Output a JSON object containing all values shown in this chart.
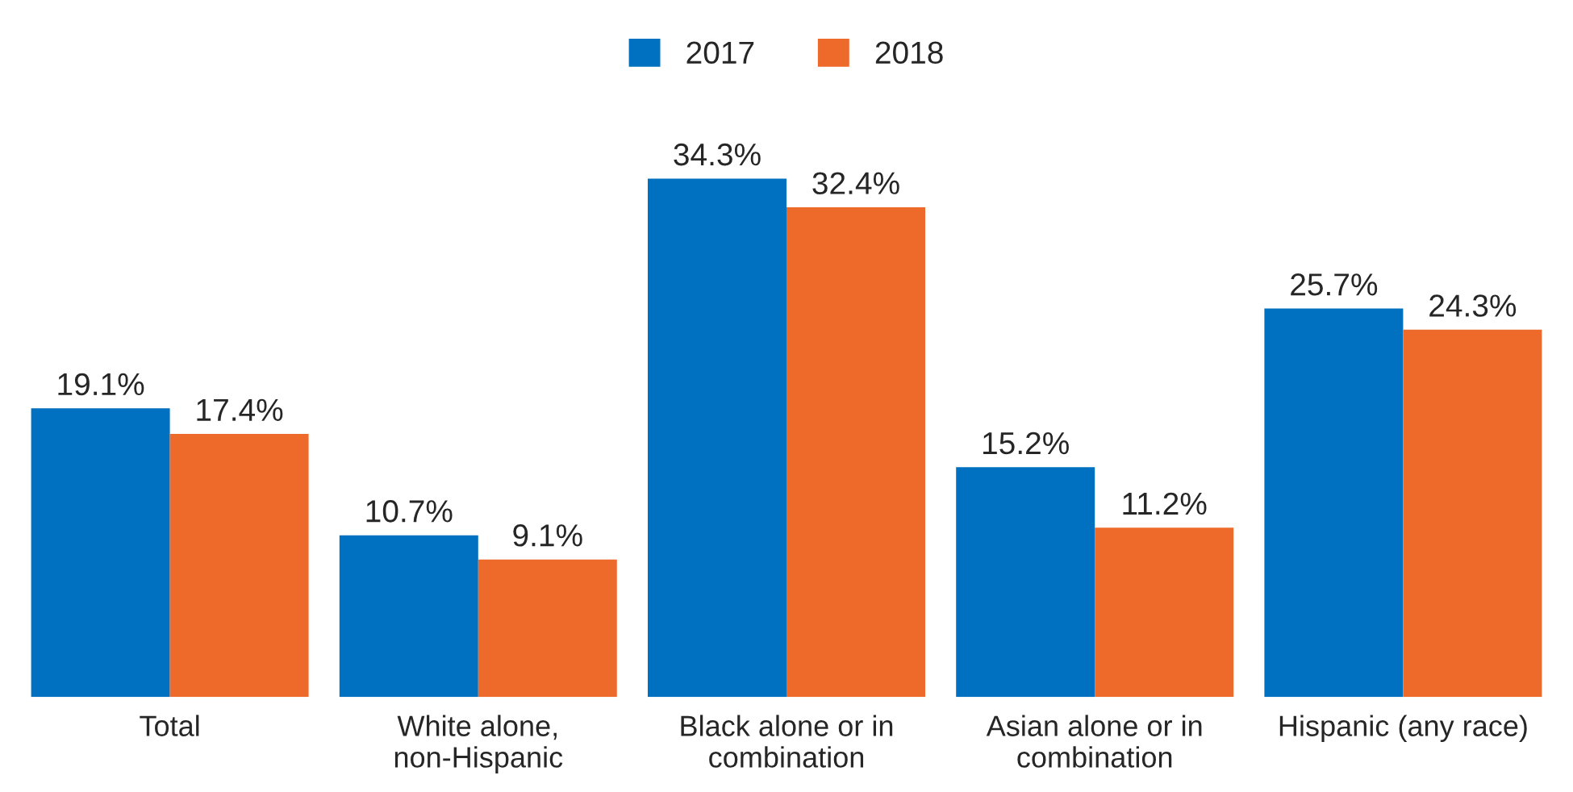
{
  "chart_data": {
    "type": "bar",
    "categories": [
      "Total",
      "White alone, non-Hispanic",
      "Black alone or in combination",
      "Asian alone or in combination",
      "Hispanic (any race)"
    ],
    "series": [
      {
        "name": "2017",
        "color": "#0070c0",
        "values": [
          19.1,
          10.7,
          34.3,
          15.2,
          25.7
        ],
        "value_labels": [
          "19.1%",
          "10.7%",
          "34.3%",
          "15.2%",
          "25.7%"
        ]
      },
      {
        "name": "2018",
        "color": "#ee6a2a",
        "values": [
          17.4,
          9.1,
          32.4,
          11.2,
          24.3
        ],
        "value_labels": [
          "17.4%",
          "9.1%",
          "32.4%",
          "11.2%",
          "24.3%"
        ]
      }
    ],
    "legend": "top",
    "grid": false
  }
}
